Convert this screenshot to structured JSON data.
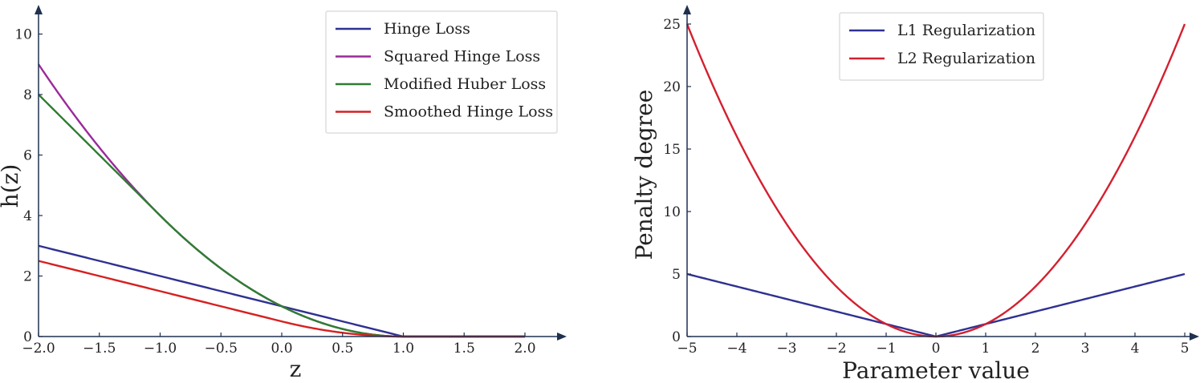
{
  "figure": {
    "colors": {
      "axis": "#1f3050",
      "hinge": "#2e3192",
      "squared_hinge": "#9a2a9a",
      "modified_huber": "#2e7d32",
      "smoothed_hinge": "#d62020",
      "l1": "#2e3192",
      "l2": "#d32030"
    }
  },
  "chart_data": [
    {
      "type": "line",
      "title": "",
      "xlabel": "z",
      "ylabel": "h(z)",
      "xlim": [
        -2.0,
        2.25
      ],
      "ylim": [
        0,
        11
      ],
      "xticks": [
        -2.0,
        -1.5,
        -1.0,
        -0.5,
        0.0,
        0.5,
        1.0,
        1.5,
        2.0
      ],
      "xtick_labels": [
        "−2.0",
        "−1.5",
        "−1.0",
        "−0.5",
        "0.0",
        "0.5",
        "1.0",
        "1.5",
        "2.0"
      ],
      "yticks": [
        0,
        2,
        4,
        6,
        8,
        10
      ],
      "ytick_labels": [
        "0",
        "2",
        "4",
        "6",
        "8",
        "10"
      ],
      "grid": false,
      "legend_position": "top-right",
      "series": [
        {
          "name": "Hinge Loss",
          "color_key": "hinge",
          "function": "hinge",
          "x": [
            -2.0,
            -1.0,
            0.0,
            1.0,
            2.0
          ],
          "y": [
            3.0,
            2.0,
            1.0,
            0.0,
            0.0
          ]
        },
        {
          "name": "Squared Hinge Loss",
          "color_key": "squared_hinge",
          "function": "squared_hinge",
          "x": [
            -2.0,
            -1.0,
            0.0,
            1.0,
            2.0
          ],
          "y": [
            9.0,
            4.0,
            1.0,
            0.0,
            0.0
          ]
        },
        {
          "name": "Modified Huber Loss",
          "color_key": "modified_huber",
          "function": "modified_huber",
          "x": [
            -2.0,
            -1.0,
            0.0,
            1.0,
            2.0
          ],
          "y": [
            8.0,
            4.0,
            1.0,
            0.0,
            0.0
          ]
        },
        {
          "name": "Smoothed Hinge Loss",
          "color_key": "smoothed_hinge",
          "function": "smoothed_hinge",
          "x": [
            -2.0,
            -1.0,
            0.0,
            1.0,
            2.0
          ],
          "y": [
            2.5,
            1.5,
            0.5,
            0.0,
            0.0
          ]
        }
      ]
    },
    {
      "type": "line",
      "title": "",
      "xlabel": "Parameter value",
      "ylabel": "Penalty degree",
      "xlim": [
        -5,
        5.4
      ],
      "ylim": [
        0,
        26
      ],
      "xticks": [
        -5,
        -4,
        -3,
        -2,
        -1,
        0,
        1,
        2,
        3,
        4,
        5
      ],
      "xtick_labels": [
        "−5",
        "−4",
        "−3",
        "−2",
        "−1",
        "0",
        "1",
        "2",
        "3",
        "4",
        "5"
      ],
      "yticks": [
        0,
        5,
        10,
        15,
        20,
        25
      ],
      "ytick_labels": [
        "0",
        "5",
        "10",
        "15",
        "20",
        "25"
      ],
      "grid": false,
      "legend_position": "top-center",
      "series": [
        {
          "name": "L1 Regularization",
          "color_key": "l1",
          "function": "abs",
          "x": [
            -5,
            0,
            5
          ],
          "y": [
            5,
            0,
            5
          ]
        },
        {
          "name": "L2 Regularization",
          "color_key": "l2",
          "function": "square",
          "x": [
            -5,
            -2.5,
            0,
            2.5,
            5
          ],
          "y": [
            25,
            6.25,
            0,
            6.25,
            25
          ]
        }
      ]
    }
  ]
}
